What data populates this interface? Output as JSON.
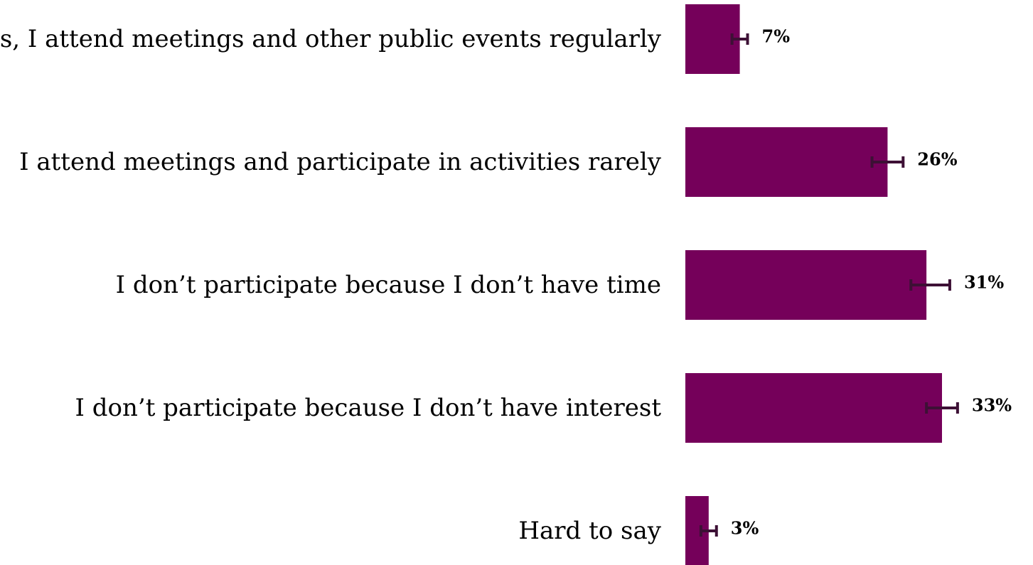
{
  "chart_data": {
    "type": "bar",
    "orientation": "horizontal",
    "categories": [
      "Yes, I attend meetings and other public events regularly",
      "I attend meetings and participate in activities rarely",
      "I don’t participate because I don’t have time",
      "I don’t participate because I don’t have interest",
      "Hard to say"
    ],
    "values": [
      7,
      26,
      31,
      33,
      3
    ],
    "value_labels": [
      "7%",
      "26%",
      "31%",
      "33%",
      "3%"
    ],
    "error_bars": [
      [
        6,
        8
      ],
      [
        24,
        28
      ],
      [
        29,
        34
      ],
      [
        31,
        35
      ],
      [
        2,
        4
      ]
    ],
    "xlim": [
      0,
      40
    ],
    "unit": "%",
    "grid": false,
    "legend": "none",
    "colors": {
      "bar": "#75005a",
      "error_bar": "#3d1035"
    }
  }
}
